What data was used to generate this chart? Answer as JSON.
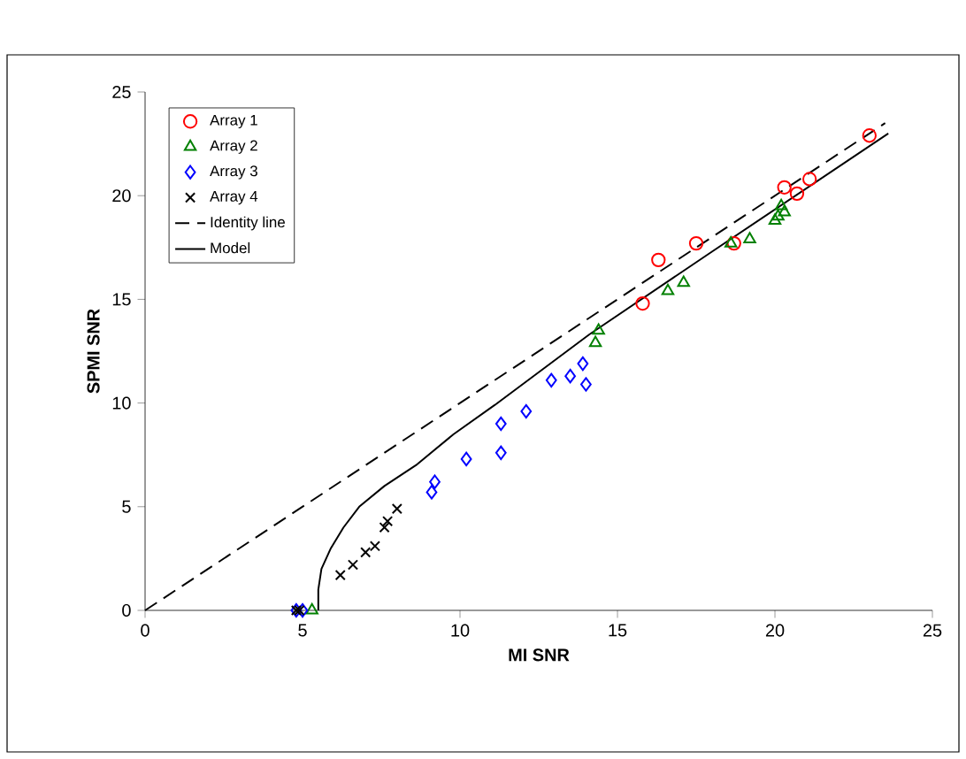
{
  "chart_data": {
    "type": "scatter",
    "xlabel": "MI SNR",
    "ylabel": "SPMI SNR",
    "xlim": [
      0,
      25
    ],
    "ylim": [
      0,
      25
    ],
    "xticks": [
      0,
      5,
      10,
      15,
      20,
      25
    ],
    "yticks": [
      0,
      5,
      10,
      15,
      20,
      25
    ],
    "grid": false,
    "legend": "top left",
    "series": [
      {
        "name": "Array 1",
        "type": "scatter",
        "marker": "circle",
        "color": "#ff0000",
        "x": [
          15.8,
          16.3,
          17.5,
          18.7,
          20.3,
          20.7,
          21.1,
          23.0
        ],
        "values": [
          14.8,
          16.9,
          17.7,
          17.7,
          20.4,
          20.1,
          20.8,
          22.9
        ]
      },
      {
        "name": "Array 2",
        "type": "scatter",
        "marker": "triangle",
        "color": "#008000",
        "x": [
          5.3,
          14.3,
          14.4,
          16.6,
          17.1,
          18.6,
          19.2,
          20.0,
          20.1,
          20.3,
          20.2
        ],
        "values": [
          0,
          12.9,
          13.5,
          15.4,
          15.8,
          17.7,
          17.9,
          18.8,
          19.0,
          19.2,
          19.5
        ]
      },
      {
        "name": "Array 3",
        "type": "scatter",
        "marker": "diamond",
        "color": "#0000ff",
        "x": [
          4.8,
          5.0,
          9.2,
          9.1,
          10.2,
          11.3,
          11.3,
          12.1,
          12.9,
          13.5,
          13.9,
          14.0
        ],
        "values": [
          0,
          0,
          6.2,
          5.7,
          7.3,
          7.6,
          9.0,
          9.6,
          11.1,
          11.3,
          11.9,
          10.9
        ]
      },
      {
        "name": "Array 4",
        "type": "scatter",
        "marker": "cross",
        "color": "#000000",
        "x": [
          4.8,
          4.9,
          6.2,
          6.6,
          7.0,
          7.3,
          7.6,
          7.7,
          8.0
        ],
        "values": [
          0,
          0,
          1.7,
          2.2,
          2.8,
          3.1,
          4.0,
          4.3,
          4.9
        ]
      },
      {
        "name": "Identity line",
        "type": "line",
        "marker": "none",
        "line_style": "dashed",
        "color": "#000000",
        "x": [
          0,
          23.5
        ],
        "values": [
          0,
          23.5
        ]
      },
      {
        "name": "Model",
        "type": "line",
        "marker": "none",
        "line_style": "solid",
        "color": "#000000",
        "x": [
          5.5,
          5.5,
          5.6,
          5.9,
          6.3,
          6.8,
          7.6,
          8.6,
          9.8,
          11.1,
          14.1,
          18.0,
          23.6
        ],
        "values": [
          0,
          1,
          2,
          3,
          4,
          5,
          6,
          7,
          8.5,
          9.9,
          13.3,
          17.3,
          23.0
        ]
      }
    ]
  }
}
